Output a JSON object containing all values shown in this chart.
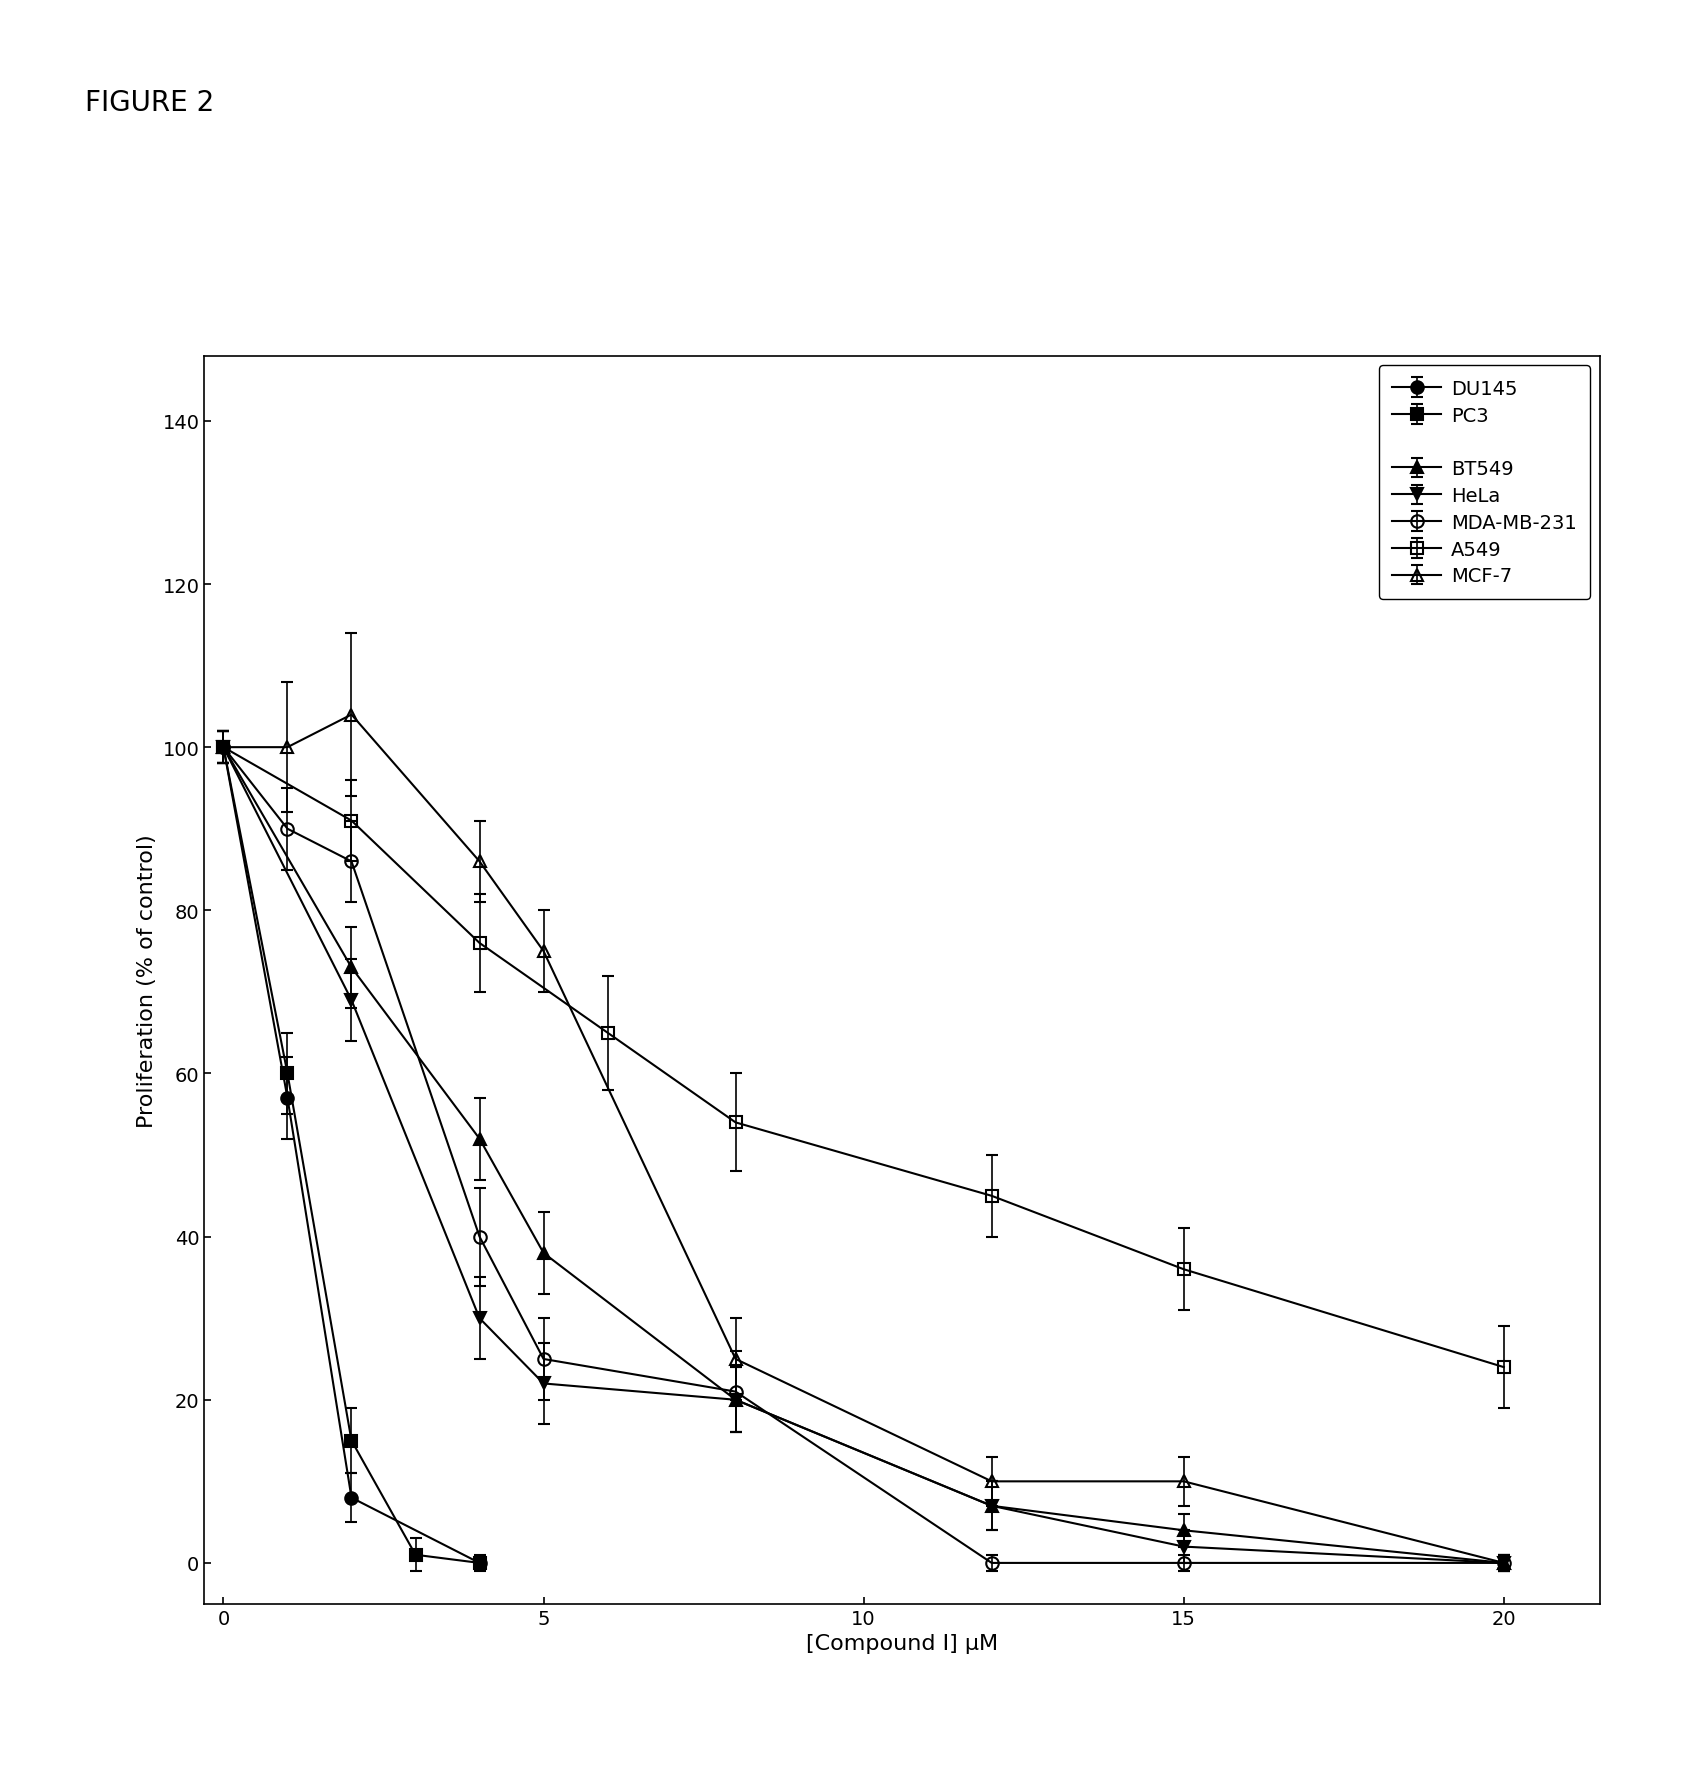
{
  "title": "FIGURE 2",
  "xlabel": "[Compound I] μM",
  "ylabel": "Proliferation (% of control)",
  "xlim": [
    -0.3,
    21.5
  ],
  "ylim": [
    -5,
    148
  ],
  "xticks": [
    0,
    5,
    10,
    15,
    20
  ],
  "yticks": [
    0,
    20,
    40,
    60,
    80,
    100,
    120,
    140
  ],
  "series": [
    {
      "label": "DU145",
      "x": [
        0,
        1,
        2,
        4
      ],
      "y": [
        100,
        57,
        8,
        0
      ],
      "yerr": [
        2,
        5,
        3,
        1
      ],
      "marker": "o",
      "fillstyle": "full",
      "color": "#000000",
      "linestyle": "-"
    },
    {
      "label": "PC3",
      "x": [
        0,
        1,
        2,
        3,
        4
      ],
      "y": [
        100,
        60,
        15,
        1,
        0
      ],
      "yerr": [
        2,
        5,
        4,
        2,
        0.5
      ],
      "marker": "s",
      "fillstyle": "full",
      "color": "#000000",
      "linestyle": "-"
    },
    {
      "label": "BT549",
      "x": [
        0,
        2,
        4,
        5,
        8,
        12,
        15,
        20
      ],
      "y": [
        100,
        73,
        52,
        38,
        20,
        7,
        4,
        0
      ],
      "yerr": [
        2,
        5,
        5,
        5,
        4,
        3,
        2,
        1
      ],
      "marker": "^",
      "fillstyle": "full",
      "color": "#000000",
      "linestyle": "-"
    },
    {
      "label": "HeLa",
      "x": [
        0,
        2,
        4,
        5,
        8,
        12,
        15,
        20
      ],
      "y": [
        100,
        69,
        30,
        22,
        20,
        7,
        2,
        0
      ],
      "yerr": [
        2,
        5,
        5,
        5,
        4,
        3,
        2,
        1
      ],
      "marker": "v",
      "fillstyle": "full",
      "color": "#000000",
      "linestyle": "-"
    },
    {
      "label": "MDA-MB-231",
      "x": [
        0,
        1,
        2,
        4,
        5,
        8,
        12,
        15,
        20
      ],
      "y": [
        100,
        90,
        86,
        40,
        25,
        21,
        0,
        0,
        0
      ],
      "yerr": [
        2,
        5,
        5,
        6,
        5,
        5,
        1,
        1,
        1
      ],
      "marker": "o",
      "fillstyle": "none",
      "color": "#000000",
      "linestyle": "-"
    },
    {
      "label": "A549",
      "x": [
        0,
        2,
        4,
        6,
        8,
        12,
        15,
        20
      ],
      "y": [
        100,
        91,
        76,
        65,
        54,
        45,
        36,
        24
      ],
      "yerr": [
        2,
        5,
        6,
        7,
        6,
        5,
        5,
        5
      ],
      "marker": "s",
      "fillstyle": "none",
      "color": "#000000",
      "linestyle": "-"
    },
    {
      "label": "MCF-7",
      "x": [
        0,
        1,
        2,
        4,
        5,
        8,
        12,
        15,
        20
      ],
      "y": [
        100,
        100,
        104,
        86,
        75,
        25,
        10,
        10,
        0
      ],
      "yerr": [
        2,
        8,
        10,
        5,
        5,
        5,
        3,
        3,
        1
      ],
      "marker": "^",
      "fillstyle": "none",
      "color": "#000000",
      "linestyle": "-"
    }
  ],
  "figsize": [
    17.02,
    17.83
  ],
  "dpi": 100,
  "background_color": "#ffffff"
}
